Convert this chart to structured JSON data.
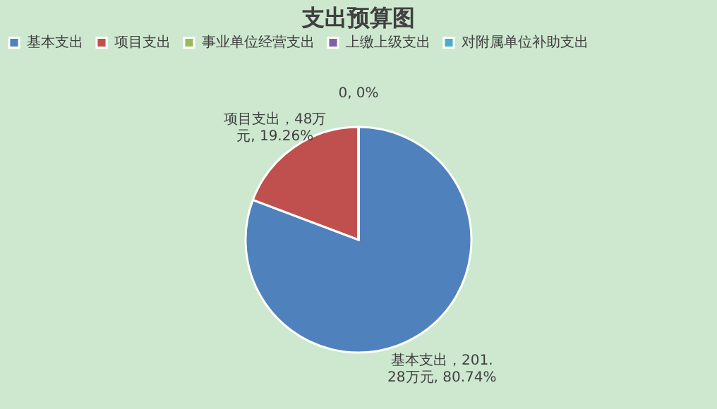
{
  "chart_data": {
    "type": "pie",
    "title": "支出预算图",
    "categories": [
      "基本支出",
      "项目支出",
      "事业单位经营支出",
      "上缴上级支出",
      "对附属单位补助支出"
    ],
    "values": [
      201.28,
      48,
      0,
      0,
      0
    ],
    "colors": [
      "#4f81bd",
      "#c0504d",
      "#9bbb59",
      "#8064a2",
      "#4bacc6"
    ],
    "value_labels": [
      "基本支出，201.28万元, 80.74%",
      "项目支出，48万元, 19.26%",
      "0, 0%",
      null,
      null
    ],
    "legend": "top"
  }
}
